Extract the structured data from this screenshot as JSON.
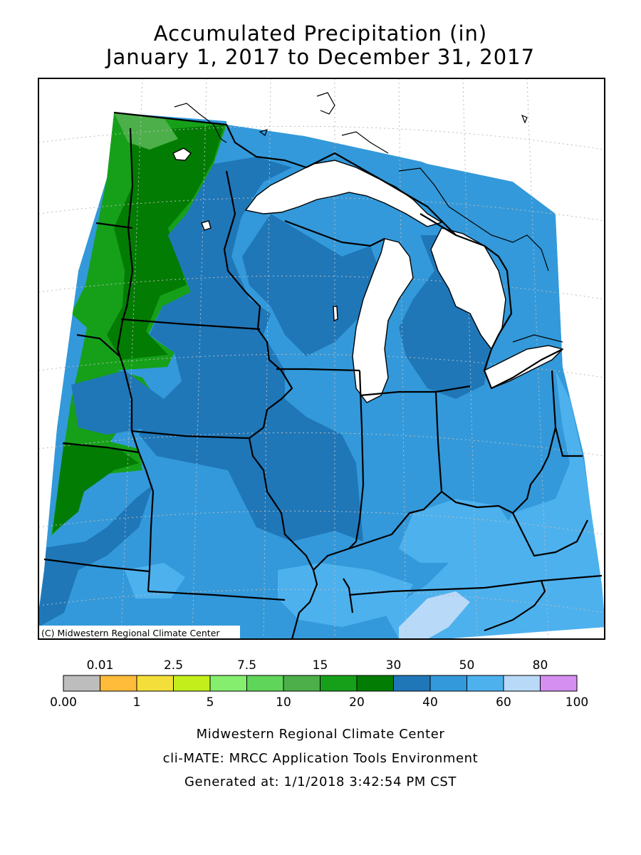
{
  "title": {
    "line1": "Accumulated Precipitation (in)",
    "line2": "January 1, 2017 to December 31, 2017"
  },
  "copyright": "(C) Midwestern Regional Climate Center",
  "legend": {
    "top_labels": [
      "0.01",
      "2.5",
      "7.5",
      "15",
      "30",
      "50",
      "80"
    ],
    "bottom_labels": [
      "0.00",
      "1",
      "5",
      "10",
      "20",
      "40",
      "60",
      "100"
    ],
    "bins": [
      {
        "color": "#bdbdbd"
      },
      {
        "color": "#ffbb3a"
      },
      {
        "color": "#f4df3a"
      },
      {
        "color": "#c3ee1c"
      },
      {
        "color": "#86ee6e"
      },
      {
        "color": "#5fd65a"
      },
      {
        "color": "#4caf4a"
      },
      {
        "color": "#16a019"
      },
      {
        "color": "#037c04"
      },
      {
        "color": "#1f77b8"
      },
      {
        "color": "#3399da"
      },
      {
        "color": "#4db1ee"
      },
      {
        "color": "#b8d9f8"
      },
      {
        "color": "#d58ff0"
      }
    ]
  },
  "footer": {
    "line1": "Midwestern Regional Climate Center",
    "line2": "cli-MATE: MRCC Application Tools Environment",
    "line3": "Generated at: 1/1/2018 3:42:54 PM CST"
  }
}
